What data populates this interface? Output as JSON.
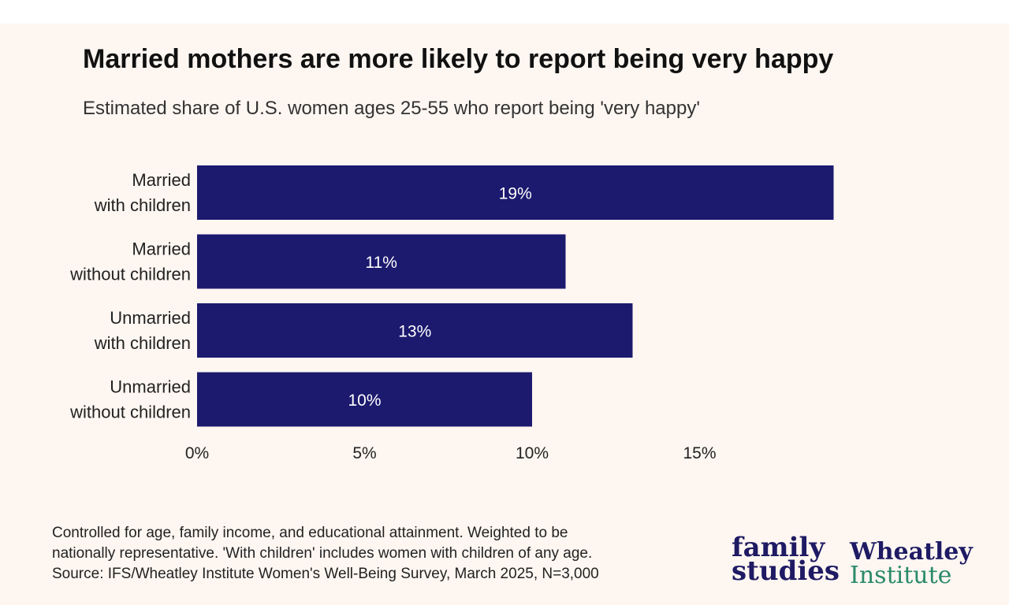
{
  "header": {
    "title": "Married mothers are more likely to report being very happy",
    "subtitle": "Estimated share of U.S. women ages 25-55 who report being 'very happy'"
  },
  "colors": {
    "bar": "#1c1a6e",
    "background": "#fdf6f1",
    "logo_navy": "#1e1a63",
    "logo_green": "#2a8a6a"
  },
  "chart_data": {
    "type": "bar",
    "orientation": "horizontal",
    "categories": [
      [
        "Married",
        "with children"
      ],
      [
        "Married",
        "without children"
      ],
      [
        "Unmarried",
        "with children"
      ],
      [
        "Unmarried",
        "without children"
      ]
    ],
    "values": [
      19,
      11,
      13,
      10
    ],
    "data_labels": [
      "19%",
      "11%",
      "13%",
      "10%"
    ],
    "xlim": [
      0,
      19
    ],
    "xticks": [
      0,
      5,
      10,
      15
    ],
    "xtick_labels": [
      "0%",
      "5%",
      "10%",
      "15%"
    ],
    "grid": false,
    "legend": "none"
  },
  "notes": {
    "line1": "Controlled for age, family income, and educational attainment. Weighted to be",
    "line2": "nationally representative. 'With children' includes women with children of any age.",
    "line3": "Source: IFS/Wheatley Institute Women's Well-Being Survey, March 2025, N=3,000"
  },
  "logos": {
    "family_studies": [
      "family",
      "studies"
    ],
    "wheatley": [
      "Wheatley",
      "Institute"
    ]
  }
}
